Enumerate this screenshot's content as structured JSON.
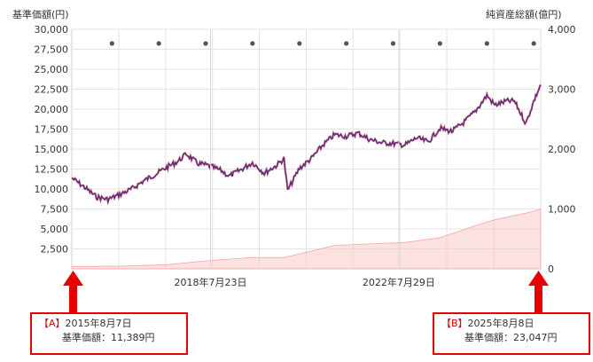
{
  "chart_data": {
    "type": "line",
    "left_axis_title": "基準価額(円)",
    "right_axis_title": "純資産総額(億円)",
    "x_tick_labels": [
      "2018年7月23日",
      "2022年7月29日"
    ],
    "y_left": {
      "min": 0,
      "max": 30000,
      "ticks": [
        2500,
        5000,
        7500,
        10000,
        12500,
        15000,
        17500,
        20000,
        22500,
        25000,
        27500,
        30000
      ],
      "tick_labels": [
        "2,500",
        "5,000",
        "7,500",
        "10,000",
        "12,500",
        "15,000",
        "17,500",
        "20,000",
        "22,500",
        "25,000",
        "27,500",
        "30,000"
      ]
    },
    "y_right": {
      "min": 0,
      "max": 4000,
      "ticks": [
        0,
        1000,
        2000,
        3000,
        4000
      ],
      "tick_labels": [
        "0",
        "1,000",
        "2,000",
        "3,000",
        "4,000"
      ]
    },
    "grid": true,
    "dividend_markers_count": 10,
    "series": [
      {
        "axis": "left",
        "style": "line",
        "color": "#6b2a7a",
        "x": [
          "2015-08-07",
          "2015-11",
          "2016-02",
          "2016-05",
          "2016-08",
          "2016-11",
          "2017-02",
          "2017-05",
          "2017-08",
          "2017-11",
          "2018-01",
          "2018-04",
          "2018-07",
          "2018-10",
          "2018-12",
          "2019-03",
          "2019-06",
          "2019-09",
          "2019-12",
          "2020-02",
          "2020-03",
          "2020-06",
          "2020-09",
          "2020-12",
          "2021-03",
          "2021-06",
          "2021-09",
          "2021-12",
          "2022-03",
          "2022-06",
          "2022-09",
          "2022-12",
          "2023-03",
          "2023-06",
          "2023-09",
          "2023-12",
          "2024-03",
          "2024-06",
          "2024-08",
          "2024-11",
          "2025-01",
          "2025-04",
          "2025-06",
          "2025-08-08"
        ],
        "values": [
          11389,
          10200,
          9000,
          8700,
          9300,
          10000,
          11000,
          11800,
          12700,
          13500,
          14400,
          13200,
          12900,
          12300,
          11600,
          12400,
          13300,
          12000,
          12900,
          13800,
          9800,
          12600,
          13800,
          15500,
          16800,
          16600,
          17000,
          16200,
          15800,
          15700,
          15500,
          16400,
          15900,
          17600,
          17200,
          18300,
          19700,
          21700,
          20500,
          21000,
          21000,
          18200,
          21000,
          23047
        ]
      },
      {
        "axis": "right",
        "style": "area",
        "color": "#f9c8c8",
        "x": [
          "2015-08-07",
          "2016-08",
          "2017-08",
          "2018-07",
          "2019-06",
          "2020-02",
          "2020-06",
          "2021-03",
          "2022-01",
          "2022-09",
          "2023-06",
          "2024-03",
          "2024-08",
          "2025-04",
          "2025-08-08"
        ],
        "values": [
          40,
          45,
          70,
          140,
          190,
          190,
          250,
          390,
          420,
          440,
          520,
          720,
          820,
          930,
          1000
        ]
      }
    ]
  },
  "note_a": {
    "tag": "【A】",
    "date": "2015年8月7日",
    "label": "基準価額：11,389円"
  },
  "note_b": {
    "tag": "【B】",
    "date": "2025年8月8日",
    "label": "基準価額：23,047円"
  }
}
